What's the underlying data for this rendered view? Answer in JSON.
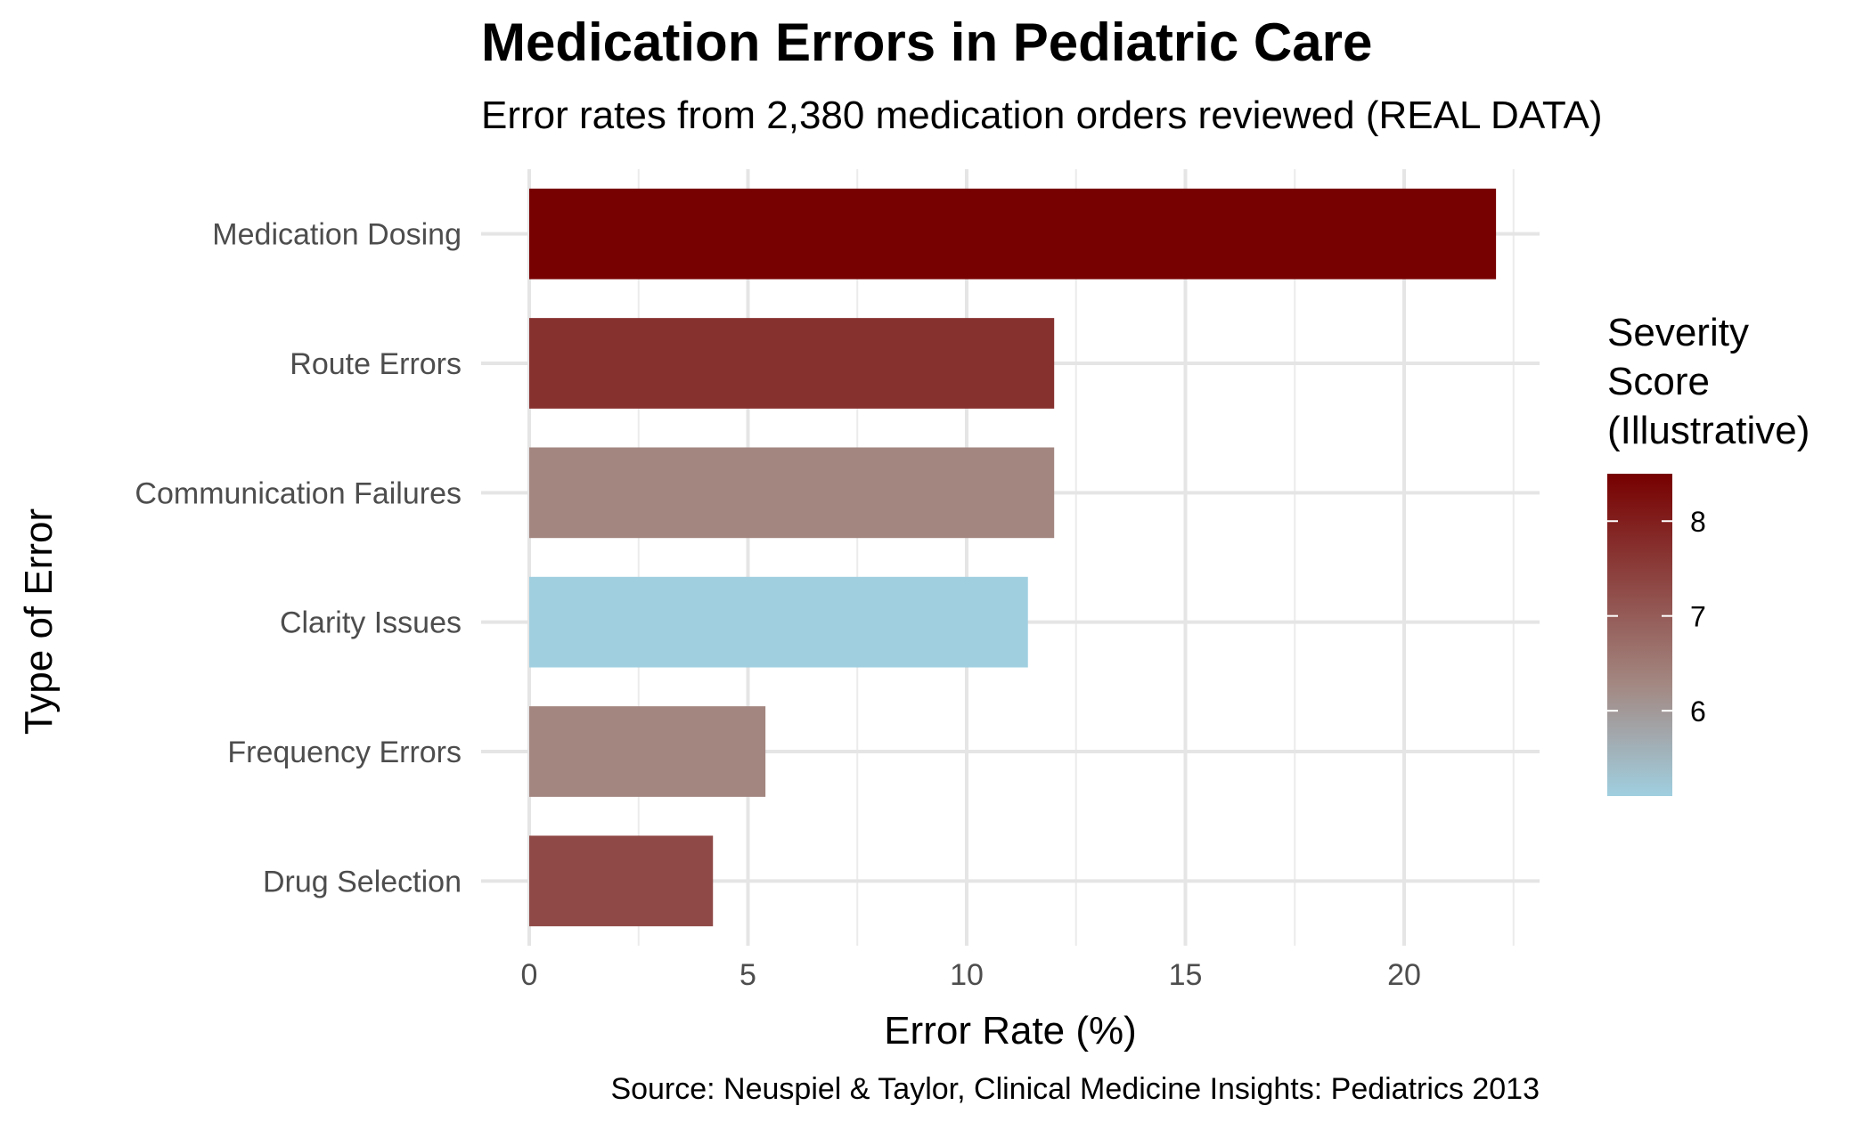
{
  "chart_data": {
    "type": "bar",
    "orientation": "horizontal",
    "title": "Medication Errors in Pediatric Care",
    "subtitle": "Error rates from 2,380 medication orders reviewed (REAL DATA)",
    "xlabel": "Error Rate (%)",
    "ylabel": "Type of Error",
    "caption": "Source: Neuspiel & Taylor, Clinical Medicine Insights: Pediatrics 2013",
    "xlim": [
      0,
      22.9
    ],
    "x_ticks": [
      0,
      5,
      10,
      15,
      20
    ],
    "grid": true,
    "categories": [
      "Medication Dosing",
      "Route Errors",
      "Communication Failures",
      "Clarity Issues",
      "Frequency Errors",
      "Drug Selection"
    ],
    "values": [
      22.1,
      12.0,
      12.0,
      11.4,
      5.4,
      4.2
    ],
    "severity": [
      8.5,
      7.7,
      6.3,
      5.1,
      6.3,
      7.3
    ],
    "legend": {
      "title": "Severity Score (Illustrative)",
      "title_lines": [
        "Severity",
        "Score",
        "(Illustrative)"
      ],
      "position": "right",
      "range": [
        5.1,
        8.5
      ],
      "ticks": [
        6,
        7,
        8
      ],
      "colors": {
        "low": "#a0cfe0",
        "mid": "#a38781",
        "high": "#770000"
      }
    }
  }
}
